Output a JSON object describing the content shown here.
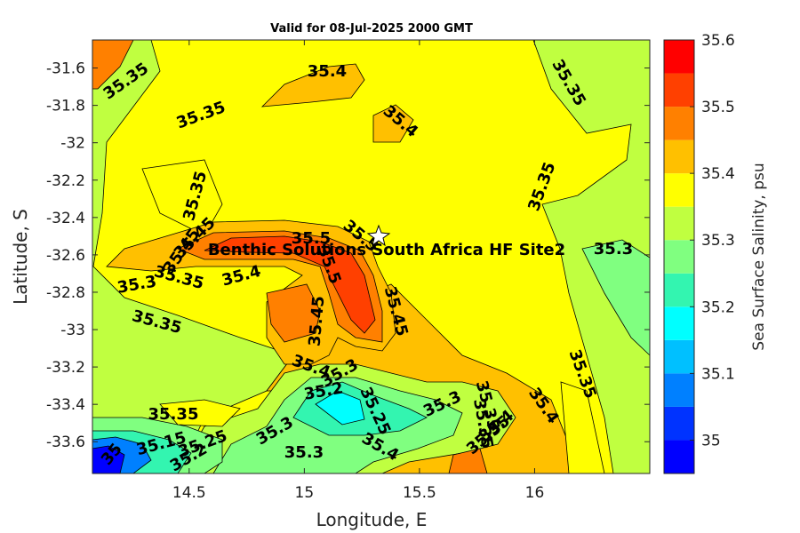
{
  "title": "Valid for 08-Jul-2025 2000 GMT",
  "xlabel": "Longitude, E",
  "ylabel": "Latitude, S",
  "colorbar": {
    "label": "Sea Surface Salinity, psu",
    "ticks": [
      "35",
      "35.1",
      "35.2",
      "35.3",
      "35.4",
      "35.5",
      "35.6"
    ],
    "levels": [
      {
        "from": 34.95,
        "to": 35.0,
        "color": "#0000ff"
      },
      {
        "from": 35.0,
        "to": 35.05,
        "color": "#0033ff"
      },
      {
        "from": 35.05,
        "to": 35.1,
        "color": "#0080ff"
      },
      {
        "from": 35.1,
        "to": 35.15,
        "color": "#00c0ff"
      },
      {
        "from": 35.15,
        "to": 35.2,
        "color": "#00ffff"
      },
      {
        "from": 35.2,
        "to": 35.25,
        "color": "#33f5b0"
      },
      {
        "from": 35.25,
        "to": 35.3,
        "color": "#80ff80"
      },
      {
        "from": 35.3,
        "to": 35.35,
        "color": "#c0ff40"
      },
      {
        "from": 35.35,
        "to": 35.4,
        "color": "#ffff00"
      },
      {
        "from": 35.4,
        "to": 35.45,
        "color": "#ffc000"
      },
      {
        "from": 35.45,
        "to": 35.5,
        "color": "#ff8000"
      },
      {
        "from": 35.5,
        "to": 35.55,
        "color": "#ff4000"
      },
      {
        "from": 35.55,
        "to": 35.6,
        "color": "#ff0000"
      }
    ]
  },
  "axes": {
    "xlim": [
      14.08,
      16.5
    ],
    "ylim": [
      -33.77,
      -31.45
    ],
    "xticks": [
      "14.5",
      "15",
      "15.5",
      "16"
    ],
    "yticks": [
      "-31.6",
      "-31.8",
      "-32",
      "-32.2",
      "-32.4",
      "-32.6",
      "-32.8",
      "-33",
      "-33.2",
      "-33.4",
      "-33.6"
    ]
  },
  "site": {
    "label": "Benthic Solutions South Africa HF Site2",
    "lon": 15.31,
    "lat": -32.47
  },
  "contour_labels": [
    "35.35",
    "35.4",
    "35.35",
    "35.4",
    "35.35",
    "35.35",
    "35.35",
    "35.45",
    "35.5",
    "35.5",
    "35.5",
    "35.45",
    "35.3",
    "35.35",
    "35.4",
    "35.3",
    "35.35",
    "35.45",
    "35.45",
    "35.4",
    "35.35",
    "35.2",
    "35.35",
    "35.25",
    "35.3",
    "35.3",
    "35.35",
    "35.4",
    "35.35",
    "35.3",
    "35.25",
    "35",
    "35.15",
    "35.2",
    "35.3",
    "35.4",
    "35.35",
    "35.4"
  ],
  "chart_data": {
    "type": "heatmap",
    "title": "Valid for 08-Jul-2025 2000 GMT",
    "xlabel": "Longitude, E",
    "ylabel": "Latitude, S",
    "xlim": [
      14.08,
      16.5
    ],
    "ylim": [
      -33.77,
      -31.45
    ],
    "zlim": [
      34.95,
      35.6
    ],
    "z_label": "Sea Surface Salinity, psu",
    "grid": false
  }
}
